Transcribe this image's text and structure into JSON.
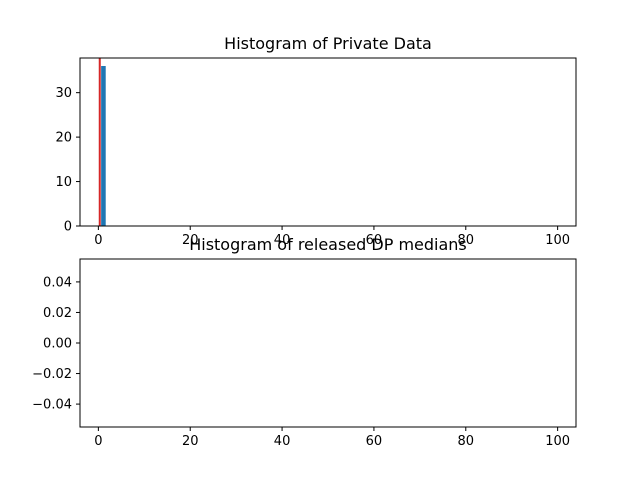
{
  "chart_data": [
    {
      "type": "bar",
      "title": "Histogram of Private Data",
      "xlabel": "",
      "ylabel": "",
      "xlim": [
        -4,
        104
      ],
      "ylim": [
        0,
        37.8
      ],
      "grid": false,
      "x_ticks": [
        0,
        20,
        40,
        60,
        80,
        100
      ],
      "y_ticks": [
        0,
        10,
        20,
        30
      ],
      "bins": [
        {
          "x0": 0.6,
          "x1": 1.6,
          "count": 36
        }
      ],
      "vline": {
        "x": 0.3,
        "color": "#d62728"
      },
      "bar_color": "#1f77b4"
    },
    {
      "type": "bar",
      "title": "Histogram of released DP medians",
      "xlabel": "",
      "ylabel": "",
      "xlim": [
        -4,
        104
      ],
      "ylim": [
        -0.055,
        0.055
      ],
      "grid": false,
      "x_ticks": [
        0,
        20,
        40,
        60,
        80,
        100
      ],
      "y_ticks": [
        0.04,
        0.02,
        0.0,
        -0.02,
        -0.04
      ],
      "y_tick_labels": [
        "0.04",
        "0.02",
        "0.00",
        "−0.02",
        "−0.04"
      ],
      "bins": []
    }
  ]
}
